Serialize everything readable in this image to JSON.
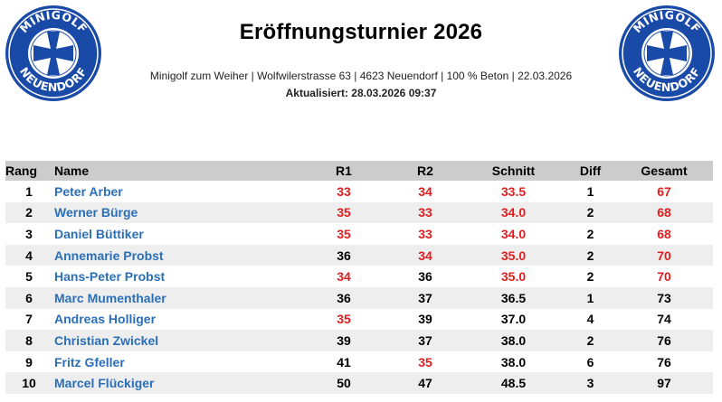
{
  "colors": {
    "logo_blue": "#1a4aa8",
    "name_blue": "#2a6fb8",
    "highlight_red": "#e41c1c",
    "header_gray": "#cccccc"
  },
  "logo": {
    "top_text": "MINIGOLF",
    "bottom_text": "NEUENDORF",
    "icon": "cross-pattee-icon"
  },
  "header": {
    "title": "Eröffnungsturnier 2026",
    "subtitle": "Minigolf zum Weiher | Wolfwilerstrasse 63 | 4623 Neuendorf | 100 %  Beton | 22.03.2026",
    "updated": "Aktualisiert: 28.03.2026 09:37"
  },
  "table": {
    "columns": [
      "Rang",
      "Name",
      "R1",
      "R2",
      "Schnitt",
      "Diff",
      "Gesamt"
    ],
    "rows": [
      {
        "rang": "1",
        "name": "Peter Arber",
        "r1": "33",
        "r2": "34",
        "schnitt": "33.5",
        "diff": "1",
        "gesamt": "67",
        "red": [
          "r1",
          "r2",
          "schnitt",
          "gesamt"
        ]
      },
      {
        "rang": "2",
        "name": "Werner Bürge",
        "r1": "35",
        "r2": "33",
        "schnitt": "34.0",
        "diff": "2",
        "gesamt": "68",
        "red": [
          "r1",
          "r2",
          "schnitt",
          "gesamt"
        ]
      },
      {
        "rang": "3",
        "name": "Daniel Büttiker",
        "r1": "35",
        "r2": "33",
        "schnitt": "34.0",
        "diff": "2",
        "gesamt": "68",
        "red": [
          "r1",
          "r2",
          "schnitt",
          "gesamt"
        ]
      },
      {
        "rang": "4",
        "name": "Annemarie Probst",
        "r1": "36",
        "r2": "34",
        "schnitt": "35.0",
        "diff": "2",
        "gesamt": "70",
        "red": [
          "r2",
          "schnitt",
          "gesamt"
        ]
      },
      {
        "rang": "5",
        "name": "Hans-Peter Probst",
        "r1": "34",
        "r2": "36",
        "schnitt": "35.0",
        "diff": "2",
        "gesamt": "70",
        "red": [
          "r1",
          "schnitt",
          "gesamt"
        ]
      },
      {
        "rang": "6",
        "name": "Marc Mumenthaler",
        "r1": "36",
        "r2": "37",
        "schnitt": "36.5",
        "diff": "1",
        "gesamt": "73",
        "red": []
      },
      {
        "rang": "7",
        "name": "Andreas Holliger",
        "r1": "35",
        "r2": "39",
        "schnitt": "37.0",
        "diff": "4",
        "gesamt": "74",
        "red": [
          "r1"
        ]
      },
      {
        "rang": "8",
        "name": "Christian Zwickel",
        "r1": "39",
        "r2": "37",
        "schnitt": "38.0",
        "diff": "2",
        "gesamt": "76",
        "red": []
      },
      {
        "rang": "9",
        "name": "Fritz Gfeller",
        "r1": "41",
        "r2": "35",
        "schnitt": "38.0",
        "diff": "6",
        "gesamt": "76",
        "red": [
          "r2"
        ]
      },
      {
        "rang": "10",
        "name": "Marcel Flückiger",
        "r1": "50",
        "r2": "47",
        "schnitt": "48.5",
        "diff": "3",
        "gesamt": "97",
        "red": []
      }
    ]
  }
}
